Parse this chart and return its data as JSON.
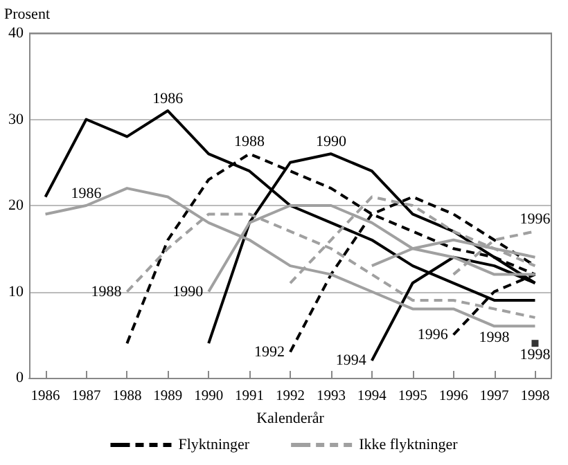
{
  "chart_data": {
    "type": "line",
    "xlabel": "Kalenderår",
    "ylabel": "Prosent",
    "xlim": [
      1985.6,
      1998.4
    ],
    "xticks": [
      1986,
      1987,
      1988,
      1989,
      1990,
      1991,
      1992,
      1993,
      1994,
      1995,
      1996,
      1997,
      1998
    ],
    "ylim": [
      0,
      40
    ],
    "yticks": [
      0,
      10,
      20,
      30,
      40
    ],
    "grid": "y",
    "legend": "bottom",
    "marker": "none",
    "series": [
      {
        "name": "Flyktninger",
        "color": "#000000",
        "line_style": "solid",
        "x": [
          1986,
          1987,
          1988,
          1989,
          1990,
          1991,
          1992,
          1993,
          1994,
          1995,
          1996,
          1997,
          1998
        ],
        "values": [
          21,
          30,
          28,
          31,
          26,
          24,
          20,
          18,
          16,
          13,
          11,
          9,
          9
        ]
      },
      {
        "color": "#000000",
        "line_style": "dashed",
        "x": [
          1988,
          1989,
          1990,
          1991,
          1992,
          1993,
          1994,
          1995,
          1996,
          1997,
          1998
        ],
        "values": [
          4,
          16,
          23,
          26,
          24,
          22,
          19,
          17,
          15,
          14,
          12
        ]
      },
      {
        "color": "#000000",
        "line_style": "solid",
        "x": [
          1990,
          1991,
          1992,
          1993,
          1994,
          1995,
          1996,
          1997,
          1998
        ],
        "values": [
          4,
          18,
          25,
          26,
          24,
          19,
          17,
          14,
          11
        ]
      },
      {
        "color": "#000000",
        "line_style": "dashed",
        "x": [
          1992,
          1993,
          1994,
          1995,
          1996,
          1997,
          1998
        ],
        "values": [
          3,
          12,
          19,
          21,
          19,
          16,
          13
        ]
      },
      {
        "color": "#000000",
        "line_style": "solid",
        "x": [
          1994,
          1995,
          1996,
          1997,
          1998
        ],
        "values": [
          2,
          11,
          14,
          13,
          11
        ]
      },
      {
        "color": "#000000",
        "line_style": "dashed",
        "x": [
          1996,
          1997,
          1998
        ],
        "values": [
          5,
          10,
          12
        ]
      },
      {
        "color": "#000000",
        "type": "scatter",
        "marker": "square",
        "x": [
          1998
        ],
        "values": [
          4
        ]
      },
      {
        "name": "Ikke flyktninger",
        "color": "#a0a0a0",
        "line_style": "solid",
        "x": [
          1986,
          1987,
          1988,
          1989,
          1990,
          1991,
          1992,
          1993,
          1994,
          1995,
          1996,
          1997,
          1998
        ],
        "values": [
          19,
          20,
          22,
          21,
          18,
          16,
          13,
          12,
          10,
          8,
          8,
          6,
          6
        ]
      },
      {
        "color": "#a0a0a0",
        "line_style": "dashed",
        "x": [
          1988,
          1989,
          1990,
          1991,
          1992,
          1993,
          1994,
          1995,
          1996,
          1997,
          1998
        ],
        "values": [
          10,
          15,
          19,
          19,
          17,
          15,
          12,
          9,
          9,
          8,
          7
        ]
      },
      {
        "color": "#a0a0a0",
        "line_style": "solid",
        "x": [
          1990,
          1991,
          1992,
          1993,
          1994,
          1995,
          1996,
          1997,
          1998
        ],
        "values": [
          10,
          18,
          20,
          20,
          18,
          15,
          14,
          12,
          12
        ]
      },
      {
        "color": "#a0a0a0",
        "line_style": "dashed",
        "x": [
          1992,
          1993,
          1994,
          1995,
          1996,
          1997,
          1998
        ],
        "values": [
          11,
          16,
          21,
          20,
          17,
          15,
          13
        ]
      },
      {
        "color": "#a0a0a0",
        "line_style": "solid",
        "x": [
          1994,
          1995,
          1996,
          1997,
          1998
        ],
        "values": [
          13,
          15,
          16,
          15,
          14
        ]
      },
      {
        "color": "#a0a0a0",
        "line_style": "dashed",
        "x": [
          1996,
          1997,
          1998
        ],
        "values": [
          12,
          16,
          17
        ]
      }
    ],
    "annotations": [
      {
        "text": "1986",
        "x": 1989,
        "y": 31
      },
      {
        "text": "1988",
        "x": 1991,
        "y": 26
      },
      {
        "text": "1990",
        "x": 1993,
        "y": 26
      },
      {
        "text": "1986",
        "x": 1987,
        "y": 20
      },
      {
        "text": "1988",
        "x": 1988,
        "y": 10
      },
      {
        "text": "1990",
        "x": 1990,
        "y": 10
      },
      {
        "text": "1992",
        "x": 1992,
        "y": 3
      },
      {
        "text": "1994",
        "x": 1994,
        "y": 2
      },
      {
        "text": "1996",
        "x": 1998,
        "y": 17
      },
      {
        "text": "1996",
        "x": 1996,
        "y": 5
      },
      {
        "text": "1998",
        "x": 1997,
        "y": 6
      },
      {
        "text": "1998",
        "x": 1998,
        "y": 4
      }
    ]
  }
}
